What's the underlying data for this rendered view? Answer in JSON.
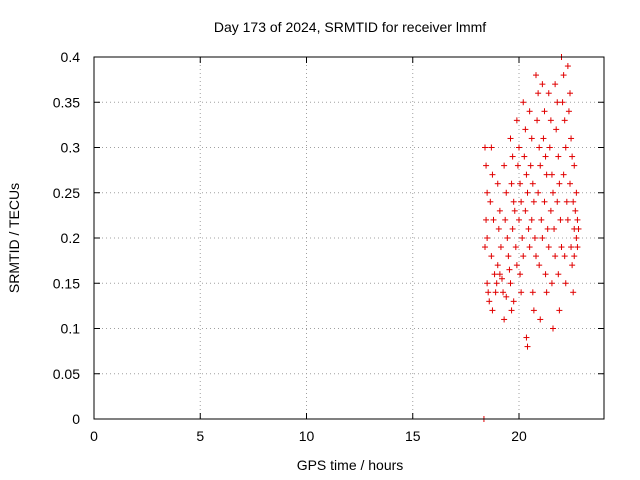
{
  "chart_data": {
    "type": "scatter",
    "title": "Day 173 of 2024, SRMTID for receiver lmmf",
    "xlabel": "GPS time / hours",
    "ylabel": "SRMTID / TECUs",
    "xlim": [
      0,
      24
    ],
    "ylim": [
      0,
      0.4
    ],
    "xticks": [
      0,
      5,
      10,
      15,
      20
    ],
    "xtick_labels": [
      "0",
      "5",
      "10",
      "15",
      "20"
    ],
    "yticks": [
      0,
      0.05,
      0.1,
      0.15,
      0.2,
      0.25,
      0.3,
      0.35,
      0.4
    ],
    "ytick_labels": [
      "0",
      "0.05",
      "0.1",
      "0.15",
      "0.2",
      "0.25",
      "0.3",
      "0.35",
      "0.4"
    ],
    "grid": true,
    "marker": "plus",
    "color": "#e00000",
    "series": [
      {
        "name": "SRMTID",
        "points": [
          [
            18.35,
            0.0
          ],
          [
            18.4,
            0.3
          ],
          [
            18.45,
            0.28
          ],
          [
            18.5,
            0.25
          ],
          [
            18.45,
            0.22
          ],
          [
            18.5,
            0.2
          ],
          [
            18.4,
            0.19
          ],
          [
            18.55,
            0.14
          ],
          [
            18.6,
            0.13
          ],
          [
            18.5,
            0.15
          ],
          [
            18.7,
            0.3
          ],
          [
            18.75,
            0.27
          ],
          [
            18.65,
            0.24
          ],
          [
            18.8,
            0.22
          ],
          [
            18.7,
            0.18
          ],
          [
            18.85,
            0.16
          ],
          [
            18.9,
            0.14
          ],
          [
            18.75,
            0.12
          ],
          [
            18.95,
            0.15
          ],
          [
            19.0,
            0.26
          ],
          [
            19.1,
            0.23
          ],
          [
            19.05,
            0.21
          ],
          [
            19.15,
            0.19
          ],
          [
            19.0,
            0.17
          ],
          [
            19.2,
            0.155
          ],
          [
            19.25,
            0.14
          ],
          [
            19.3,
            0.11
          ],
          [
            19.1,
            0.16
          ],
          [
            19.3,
            0.28
          ],
          [
            19.4,
            0.25
          ],
          [
            19.35,
            0.22
          ],
          [
            19.45,
            0.2
          ],
          [
            19.5,
            0.18
          ],
          [
            19.55,
            0.165
          ],
          [
            19.6,
            0.15
          ],
          [
            19.4,
            0.135
          ],
          [
            19.65,
            0.12
          ],
          [
            19.6,
            0.31
          ],
          [
            19.7,
            0.29
          ],
          [
            19.65,
            0.26
          ],
          [
            19.75,
            0.24
          ],
          [
            19.8,
            0.23
          ],
          [
            19.7,
            0.21
          ],
          [
            19.85,
            0.19
          ],
          [
            19.9,
            0.17
          ],
          [
            19.75,
            0.13
          ],
          [
            19.9,
            0.33
          ],
          [
            20.0,
            0.3
          ],
          [
            19.95,
            0.28
          ],
          [
            20.05,
            0.26
          ],
          [
            20.1,
            0.24
          ],
          [
            20.0,
            0.22
          ],
          [
            20.15,
            0.2
          ],
          [
            20.2,
            0.18
          ],
          [
            20.05,
            0.16
          ],
          [
            20.1,
            0.14
          ],
          [
            20.2,
            0.35
          ],
          [
            20.3,
            0.32
          ],
          [
            20.25,
            0.29
          ],
          [
            20.35,
            0.27
          ],
          [
            20.4,
            0.25
          ],
          [
            20.3,
            0.23
          ],
          [
            20.45,
            0.21
          ],
          [
            20.5,
            0.19
          ],
          [
            20.35,
            0.09
          ],
          [
            20.4,
            0.08
          ],
          [
            20.5,
            0.34
          ],
          [
            20.6,
            0.31
          ],
          [
            20.55,
            0.28
          ],
          [
            20.65,
            0.26
          ],
          [
            20.7,
            0.24
          ],
          [
            20.6,
            0.22
          ],
          [
            20.75,
            0.2
          ],
          [
            20.8,
            0.18
          ],
          [
            20.65,
            0.14
          ],
          [
            20.7,
            0.12
          ],
          [
            20.8,
            0.38
          ],
          [
            20.9,
            0.36
          ],
          [
            20.85,
            0.33
          ],
          [
            20.95,
            0.3
          ],
          [
            21.0,
            0.28
          ],
          [
            20.9,
            0.25
          ],
          [
            21.05,
            0.22
          ],
          [
            21.1,
            0.2
          ],
          [
            20.95,
            0.17
          ],
          [
            21.0,
            0.11
          ],
          [
            21.1,
            0.37
          ],
          [
            21.2,
            0.34
          ],
          [
            21.15,
            0.31
          ],
          [
            21.25,
            0.29
          ],
          [
            21.3,
            0.27
          ],
          [
            21.2,
            0.24
          ],
          [
            21.35,
            0.21
          ],
          [
            21.4,
            0.19
          ],
          [
            21.25,
            0.16
          ],
          [
            21.3,
            0.14
          ],
          [
            21.4,
            0.36
          ],
          [
            21.5,
            0.33
          ],
          [
            21.45,
            0.3
          ],
          [
            21.55,
            0.27
          ],
          [
            21.6,
            0.25
          ],
          [
            21.5,
            0.23
          ],
          [
            21.65,
            0.21
          ],
          [
            21.7,
            0.18
          ],
          [
            21.55,
            0.15
          ],
          [
            21.6,
            0.1
          ],
          [
            21.7,
            0.37
          ],
          [
            21.8,
            0.35
          ],
          [
            21.75,
            0.32
          ],
          [
            21.85,
            0.29
          ],
          [
            21.9,
            0.26
          ],
          [
            21.8,
            0.24
          ],
          [
            21.95,
            0.22
          ],
          [
            22.0,
            0.19
          ],
          [
            21.85,
            0.16
          ],
          [
            21.9,
            0.12
          ],
          [
            22.0,
            0.4
          ],
          [
            22.1,
            0.38
          ],
          [
            22.05,
            0.35
          ],
          [
            22.15,
            0.33
          ],
          [
            22.2,
            0.3
          ],
          [
            22.1,
            0.27
          ],
          [
            22.25,
            0.24
          ],
          [
            22.3,
            0.22
          ],
          [
            22.15,
            0.18
          ],
          [
            22.2,
            0.15
          ],
          [
            22.3,
            0.39
          ],
          [
            22.4,
            0.36
          ],
          [
            22.35,
            0.34
          ],
          [
            22.45,
            0.31
          ],
          [
            22.5,
            0.29
          ],
          [
            22.4,
            0.26
          ],
          [
            22.55,
            0.24
          ],
          [
            22.6,
            0.21
          ],
          [
            22.45,
            0.19
          ],
          [
            22.5,
            0.17
          ],
          [
            22.6,
            0.28
          ],
          [
            22.7,
            0.25
          ],
          [
            22.65,
            0.23
          ],
          [
            22.75,
            0.22
          ],
          [
            22.8,
            0.21
          ],
          [
            22.7,
            0.2
          ],
          [
            22.6,
            0.18
          ],
          [
            22.75,
            0.19
          ],
          [
            22.55,
            0.14
          ]
        ]
      }
    ]
  }
}
